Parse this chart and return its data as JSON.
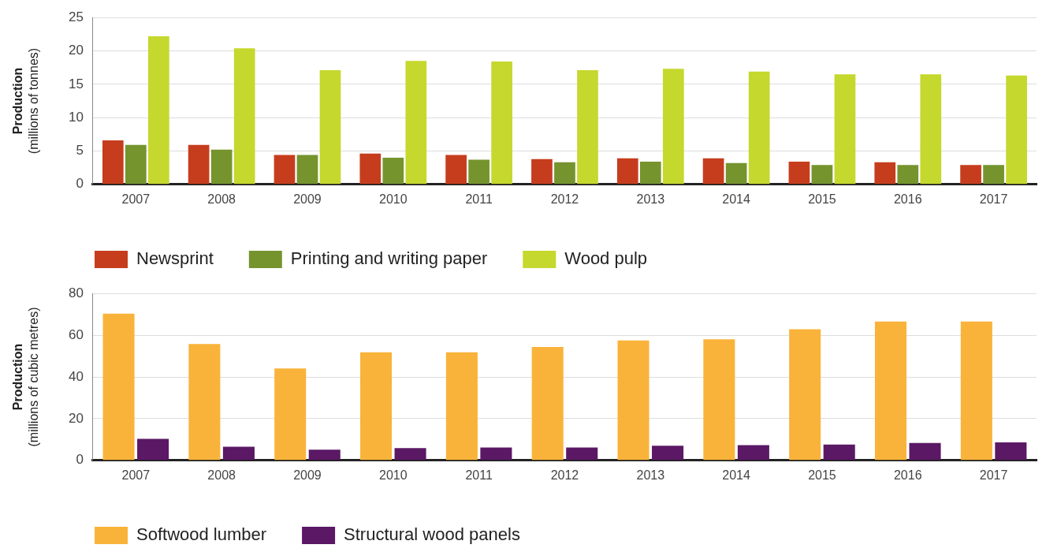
{
  "chart_data": [
    {
      "type": "bar",
      "ylabel": "Production\n(millions of tonnes)",
      "categories": [
        "2007",
        "2008",
        "2009",
        "2010",
        "2011",
        "2012",
        "2013",
        "2014",
        "2015",
        "2016",
        "2017"
      ],
      "series": [
        {
          "name": "Newsprint",
          "color": "#c63d1e",
          "values": [
            6.6,
            5.9,
            4.4,
            4.6,
            4.4,
            3.8,
            3.9,
            3.9,
            3.4,
            3.3,
            2.9
          ]
        },
        {
          "name": "Printing and writing paper",
          "color": "#75942e",
          "values": [
            5.9,
            5.2,
            4.4,
            4.0,
            3.7,
            3.3,
            3.4,
            3.2,
            2.9,
            2.9,
            2.9
          ]
        },
        {
          "name": "Wood pulp",
          "color": "#c5d82d",
          "values": [
            22.2,
            20.4,
            17.1,
            18.5,
            18.4,
            17.1,
            17.3,
            16.9,
            16.5,
            16.5,
            16.3
          ]
        }
      ],
      "ylim": [
        0,
        25
      ],
      "yticks": [
        0,
        5,
        10,
        15,
        20,
        25
      ],
      "grid": "y",
      "legend": "bottom left"
    },
    {
      "type": "bar",
      "ylabel": "Production\n(millions of cubic metres)",
      "categories": [
        "2007",
        "2008",
        "2009",
        "2010",
        "2011",
        "2012",
        "2013",
        "2014",
        "2015",
        "2016",
        "2017"
      ],
      "series": [
        {
          "name": "Softwood lumber",
          "color": "#f9b33a",
          "values": [
            70.3,
            55.8,
            44.1,
            51.8,
            51.8,
            54.4,
            57.5,
            58.1,
            62.9,
            66.6,
            66.6
          ]
        },
        {
          "name": "Structural wood panels",
          "color": "#5a1865",
          "values": [
            10.3,
            6.5,
            5.1,
            5.9,
            6.2,
            6.2,
            7.0,
            7.3,
            7.6,
            8.3,
            8.6
          ]
        }
      ],
      "ylim": [
        0,
        80
      ],
      "yticks": [
        0,
        20,
        40,
        60,
        80
      ],
      "grid": "y",
      "legend": "bottom left"
    }
  ]
}
